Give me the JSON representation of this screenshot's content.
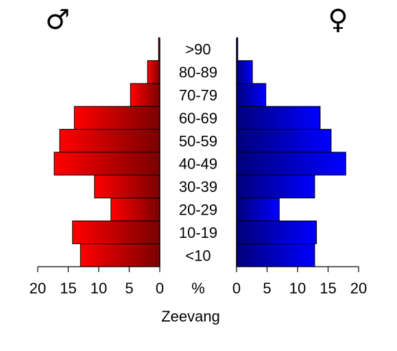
{
  "chart_data": {
    "type": "bar",
    "subtype": "population-pyramid",
    "orientation": "horizontal",
    "categories": [
      "<10",
      "10-19",
      "20-29",
      "30-39",
      "40-49",
      "50-59",
      "60-69",
      "70-79",
      "80-89",
      ">90"
    ],
    "series": [
      {
        "name": "♂",
        "side": "left",
        "values": [
          13.0,
          14.3,
          8.0,
          10.7,
          17.3,
          16.4,
          14.0,
          4.8,
          2.0,
          0.2
        ],
        "color_light": "#ff0000",
        "color_dark": "#7a0000"
      },
      {
        "name": "♀",
        "side": "right",
        "values": [
          12.8,
          13.1,
          7.0,
          12.8,
          17.9,
          15.5,
          13.7,
          4.8,
          2.6,
          0.2
        ],
        "color_light": "#0000ff",
        "color_dark": "#00007a"
      }
    ],
    "xlim": [
      0,
      20
    ],
    "xticks": [
      0,
      5,
      10,
      15,
      20
    ],
    "xtick_labels_left": [
      "20",
      "15",
      "10",
      "5",
      "0"
    ],
    "xtick_labels_right": [
      "0",
      "5",
      "10",
      "15",
      "20"
    ],
    "center_unit_label": "%",
    "xlabel": "Zeevang",
    "male_symbol": "♂",
    "female_symbol": "♀",
    "grid": false,
    "legend": "symbols above each half"
  }
}
